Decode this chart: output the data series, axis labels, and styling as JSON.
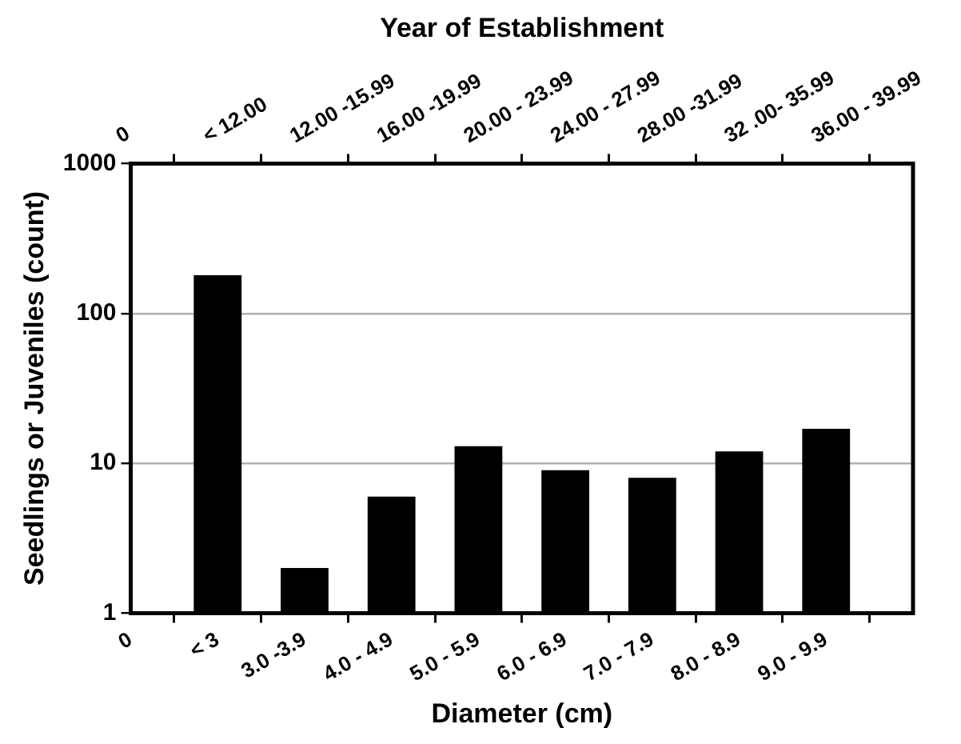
{
  "chart_data": {
    "type": "bar",
    "xlabel": "Diameter (cm)",
    "ylabel": "Seedlings or Juveniles (count)",
    "x2label": "Year of Establishment",
    "categories": [
      "0",
      "< 3",
      "3.0 -3.9",
      "4.0 - 4.9",
      "5.0 - 5.9",
      "6.0 - 6.9",
      "7.0 - 7.9",
      "8.0 - 8.9",
      "9.0 - 9.9",
      null
    ],
    "annotations": [
      "0",
      "< 12.00",
      "12.00 -15.99",
      "16.00 -19.99",
      "20.00 - 23.99",
      "24.00 - 27.99",
      "28.00 -31.99",
      "32 .00- 35.99",
      "36.00 - 39.99"
    ],
    "values": [
      null,
      180,
      2,
      6,
      13,
      9,
      8,
      12,
      17,
      null
    ],
    "color": "#000000",
    "log": "y",
    "ylim": [
      1,
      1000
    ],
    "yticks": [
      1,
      10,
      100,
      1000
    ],
    "grid": "y",
    "legend": false
  }
}
